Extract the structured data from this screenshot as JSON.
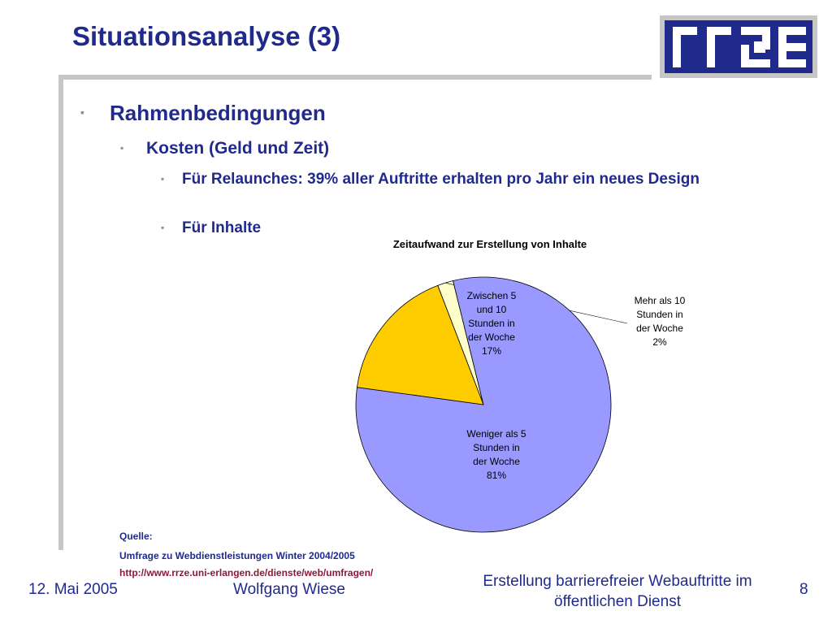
{
  "slide": {
    "title": "Situationsanalyse (3)",
    "logo_text": "rrze"
  },
  "bullets": {
    "level1": "Rahmenbedingungen",
    "level2": "Kosten (Geld und Zeit)",
    "level3a": "Für Relaunches: 39% aller Auftritte erhalten pro Jahr ein neues Design",
    "level3b": "Für Inhalte",
    "marker": "▪"
  },
  "chart_data": {
    "type": "pie",
    "title": "Zeitaufwand zur Erstellung von Inhalte",
    "slices": [
      {
        "label": [
          "Weniger als 5",
          "Stunden in",
          "der Woche",
          "81%"
        ],
        "value": 81,
        "color": "#9999ff"
      },
      {
        "label": [
          "Zwischen 5",
          "und 10",
          "Stunden in",
          "der Woche",
          "17%"
        ],
        "value": 17,
        "color": "#ffcc00"
      },
      {
        "label": [
          "Mehr als 10",
          "Stunden in",
          "der Woche",
          "2%"
        ],
        "value": 2,
        "color": "#ffffcc"
      }
    ]
  },
  "source": {
    "heading": "Quelle:",
    "line1": "Umfrage zu Webdienstleistungen Winter 2004/2005",
    "line2": "http://www.rrze.uni-erlangen.de/dienste/web/umfragen/"
  },
  "footer": {
    "date": "12. Mai 2005",
    "author": "Wolfgang Wiese",
    "event": "Erstellung barrierefreier Webauftritte im öffentlichen Dienst",
    "page": "8"
  },
  "colors": {
    "accent": "#1f2a8c",
    "logo_bg": "#1f2a8c",
    "logo_frame": "#c6c6c6",
    "link": "#8b1a3a"
  }
}
